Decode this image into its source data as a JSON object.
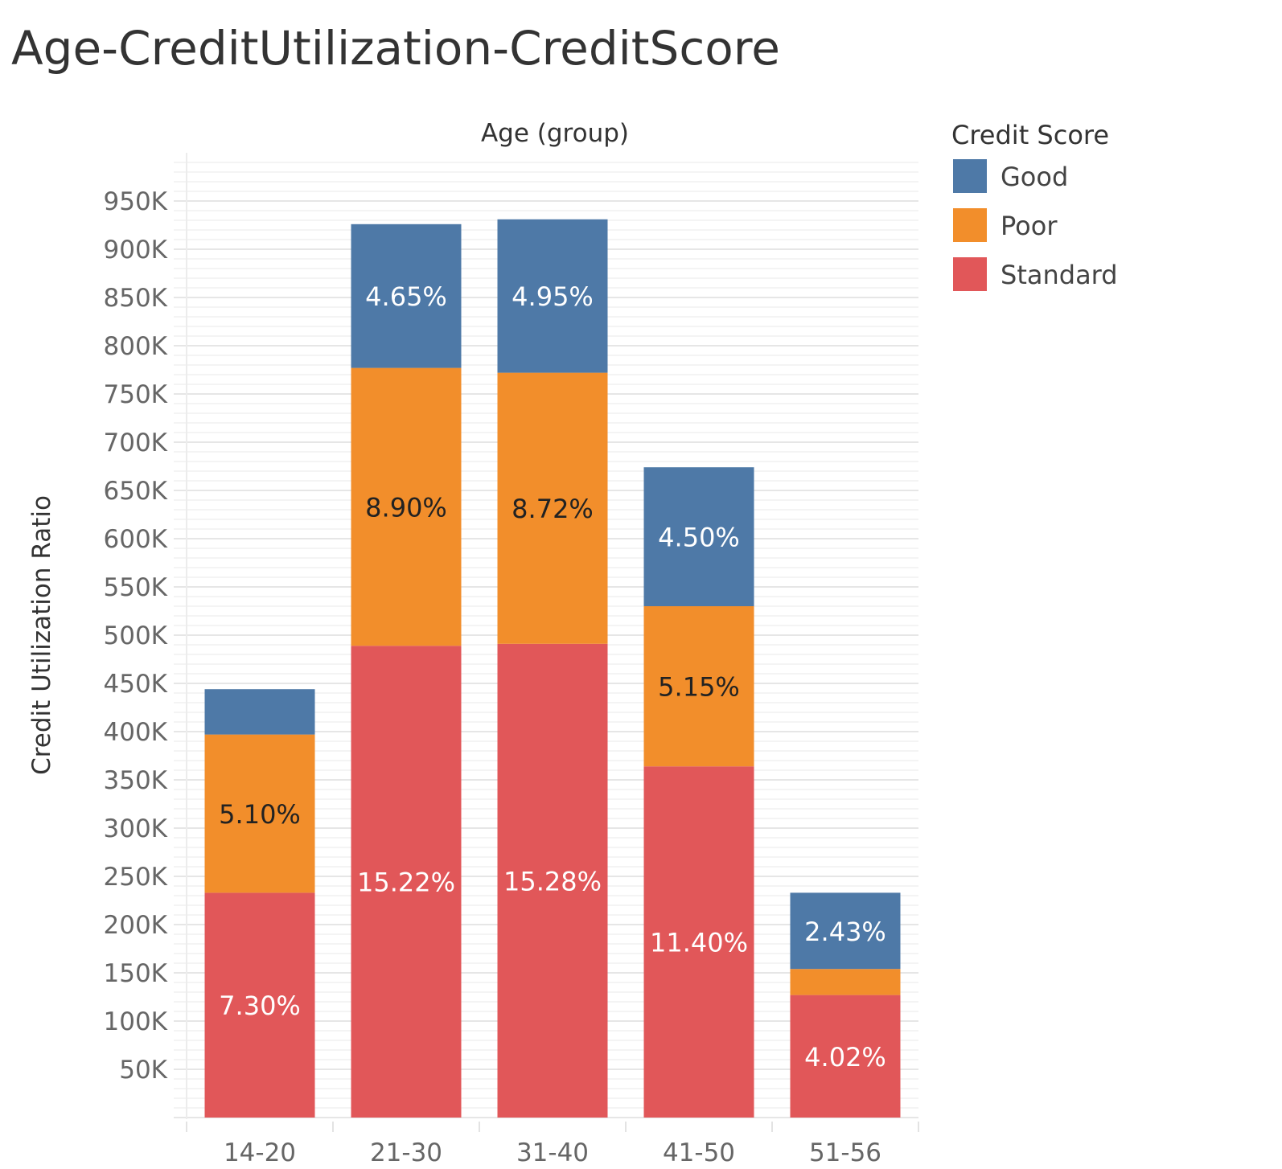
{
  "title": "Age-CreditUtilization-CreditScore",
  "chart_data": {
    "type": "bar",
    "stacked": true,
    "xlabel": "Age (group)",
    "ylabel": "Credit Utilization Ratio",
    "categories": [
      "14-20",
      "21-30",
      "31-40",
      "41-50",
      "51-56"
    ],
    "ylim": [
      0,
      1000000
    ],
    "y_ticks": [
      50000,
      100000,
      150000,
      200000,
      250000,
      300000,
      350000,
      400000,
      450000,
      500000,
      550000,
      600000,
      650000,
      700000,
      750000,
      800000,
      850000,
      900000,
      950000
    ],
    "y_tick_labels": [
      "50K",
      "100K",
      "150K",
      "200K",
      "250K",
      "300K",
      "350K",
      "400K",
      "450K",
      "500K",
      "550K",
      "600K",
      "650K",
      "700K",
      "750K",
      "800K",
      "850K",
      "900K",
      "950K"
    ],
    "grid": true,
    "legend": {
      "title": "Credit Score",
      "placement": "right"
    },
    "series": [
      {
        "name": "Standard",
        "color": "#e15759",
        "label_color": "#ffffff",
        "values": [
          233000,
          489000,
          491000,
          364000,
          127000
        ],
        "labels": [
          "7.30%",
          "15.22%",
          "15.28%",
          "11.40%",
          "4.02%"
        ]
      },
      {
        "name": "Poor",
        "color": "#f28e2b",
        "label_color": "#222222",
        "values": [
          164000,
          288000,
          281000,
          166000,
          27000
        ],
        "labels": [
          "5.10%",
          "8.90%",
          "8.72%",
          "5.15%",
          ""
        ]
      },
      {
        "name": "Good",
        "color": "#4e79a7",
        "label_color": "#ffffff",
        "values": [
          47000,
          149000,
          159000,
          144000,
          79000
        ],
        "labels": [
          "",
          "4.65%",
          "4.95%",
          "4.50%",
          "2.43%"
        ]
      }
    ]
  }
}
